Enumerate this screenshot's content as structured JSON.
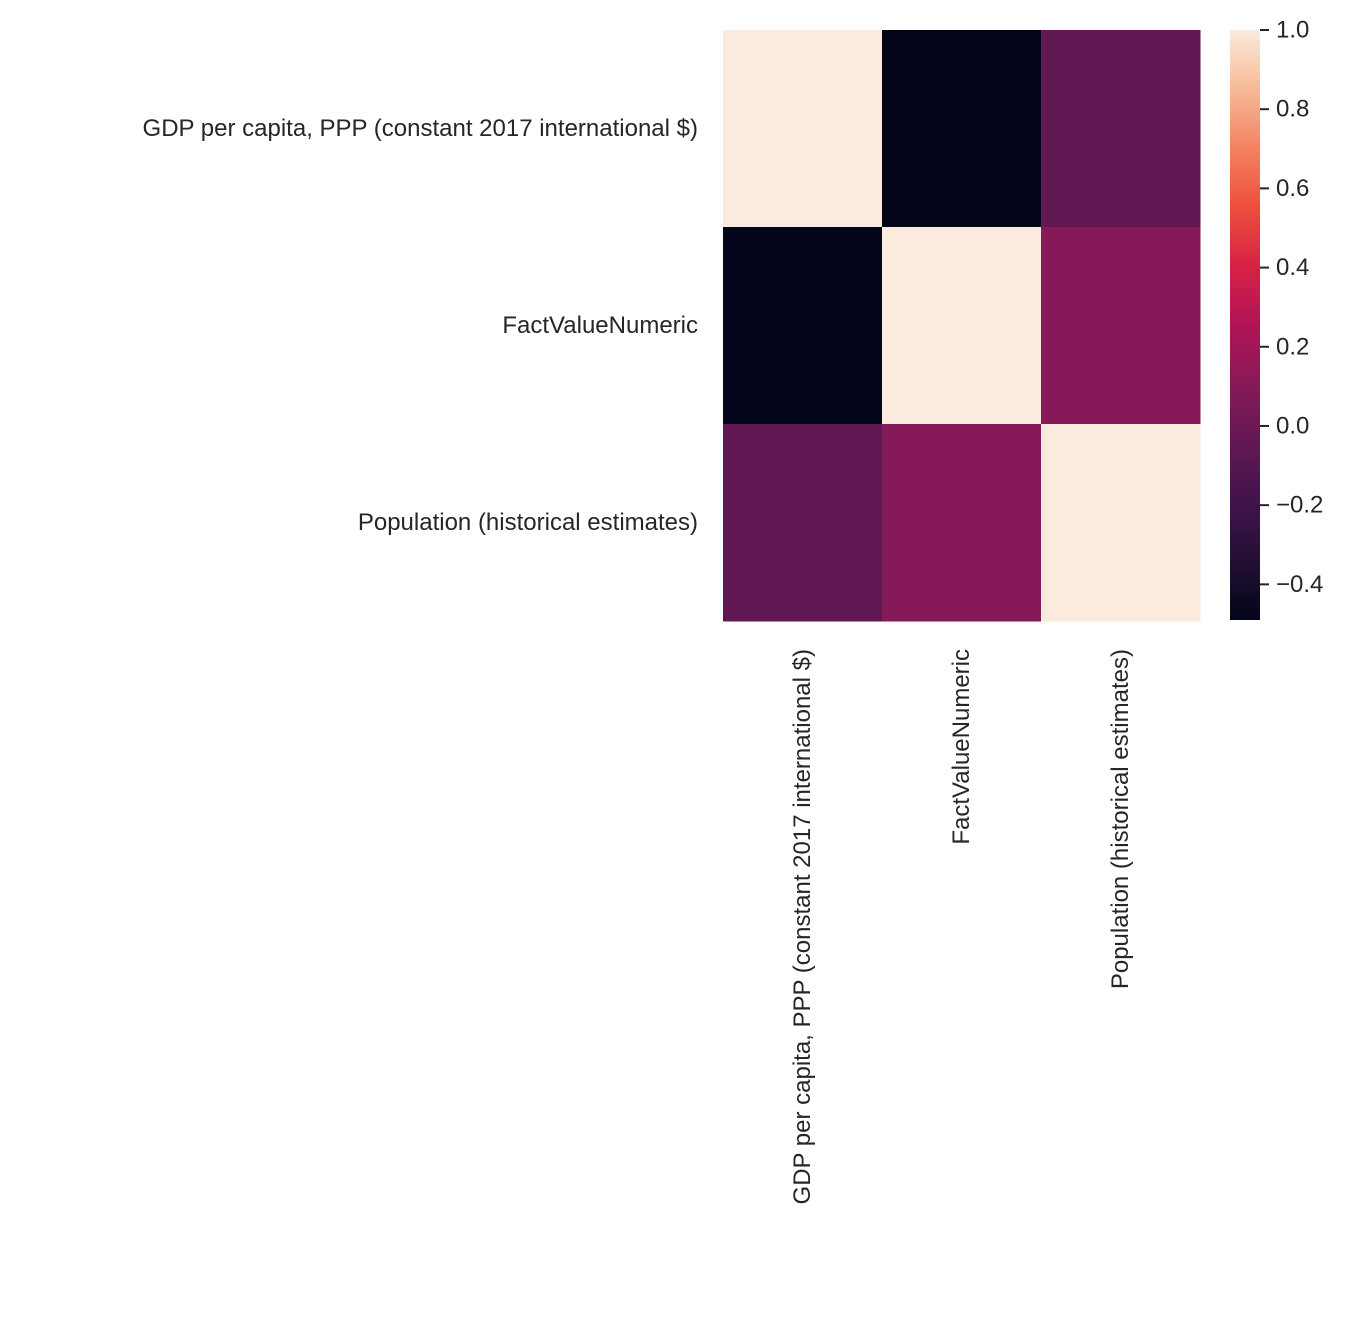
{
  "chart_data": {
    "type": "heatmap",
    "title": "",
    "xlabel": "",
    "ylabel": "",
    "rows": [
      "GDP per capita, PPP (constant 2017 international $)",
      "FactValueNumeric",
      "Population (historical estimates)"
    ],
    "columns": [
      "GDP per capita, PPP (constant 2017 international $)",
      "FactValueNumeric",
      "Population (historical estimates)"
    ],
    "values": [
      [
        1.0,
        -0.49,
        -0.05
      ],
      [
        -0.49,
        1.0,
        0.1
      ],
      [
        -0.05,
        0.1,
        1.0
      ]
    ],
    "colorbar": {
      "range": [
        -0.49,
        1.0
      ],
      "ticks": [
        1.0,
        0.8,
        0.6,
        0.4,
        0.2,
        0.0,
        -0.2,
        -0.4
      ],
      "tick_labels": [
        "1.0",
        "0.8",
        "0.6",
        "0.4",
        "0.2",
        "0.0",
        "−0.2",
        "−0.4"
      ],
      "colormap": "rocket",
      "placement": "right"
    },
    "grid": false
  }
}
